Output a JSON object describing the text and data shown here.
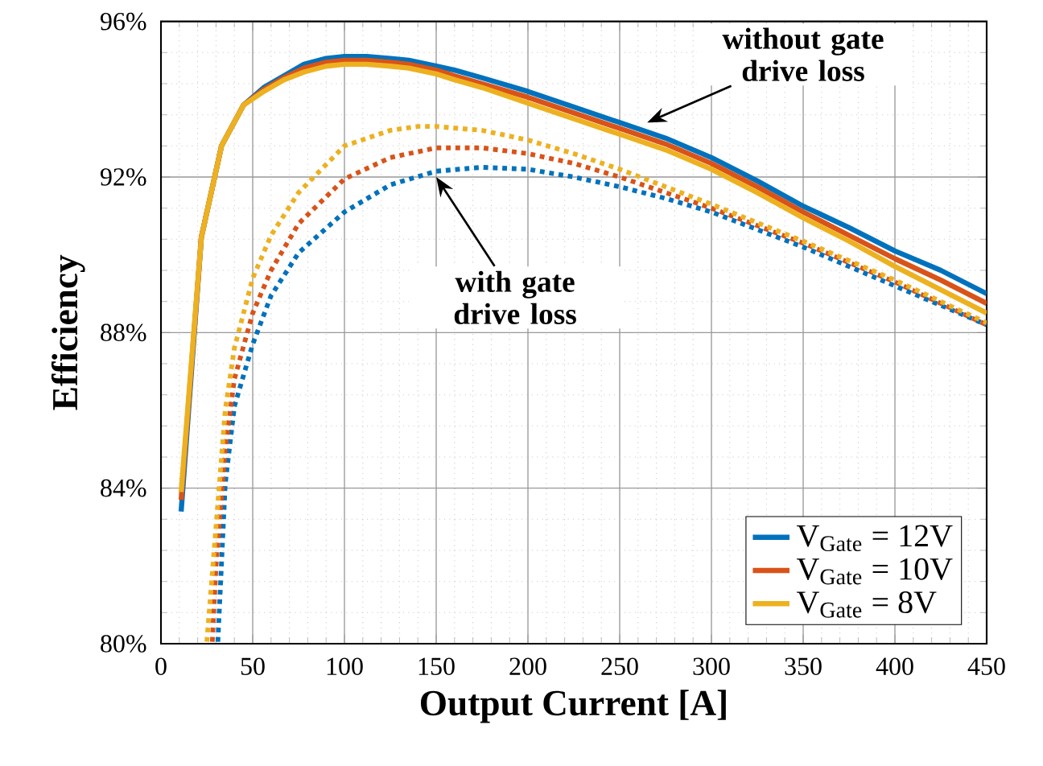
{
  "chart_data": {
    "type": "line",
    "xlabel": "Output Current [A]",
    "ylabel": "Efficiency",
    "xlim": [
      0,
      450
    ],
    "xticks": [
      0,
      50,
      100,
      150,
      200,
      250,
      300,
      350,
      400,
      450
    ],
    "ylim": [
      80,
      96
    ],
    "yticks": [
      {
        "value": 80,
        "label": "80%"
      },
      {
        "value": 84,
        "label": "84%"
      },
      {
        "value": 88,
        "label": "88%"
      },
      {
        "value": 92,
        "label": "92%"
      },
      {
        "value": 96,
        "label": "96%"
      }
    ],
    "grid": true,
    "legend": "bottom right",
    "annotations": [
      {
        "text": "without gate drive loss",
        "x": 265,
        "y": 93.4
      },
      {
        "text": "with gate drive loss",
        "x": 150,
        "y": 92.0
      }
    ],
    "series": [
      {
        "name": "V$_{Gate}$ = 12V",
        "color": "#0072bd",
        "line_style": "solid",
        "x": [
          11,
          22,
          33,
          45,
          56,
          67,
          78,
          90,
          100,
          112,
          125,
          135,
          150,
          160,
          175,
          200,
          225,
          250,
          275,
          300,
          325,
          350,
          375,
          400,
          425,
          450
        ],
        "values": [
          83.4,
          90.45,
          92.8,
          93.85,
          94.3,
          94.6,
          94.9,
          95.05,
          95.1,
          95.1,
          95.05,
          95.0,
          94.85,
          94.75,
          94.55,
          94.2,
          93.8,
          93.4,
          93.0,
          92.5,
          91.9,
          91.25,
          90.7,
          90.1,
          89.6,
          89.0
        ]
      },
      {
        "name": "V$_{Gate}$ = 10V",
        "color": "#d95319",
        "line_style": "solid",
        "x": [
          11,
          22,
          33,
          45,
          56,
          67,
          78,
          90,
          100,
          112,
          125,
          135,
          150,
          160,
          175,
          200,
          225,
          250,
          275,
          300,
          325,
          350,
          375,
          400,
          425,
          450
        ],
        "values": [
          83.7,
          90.45,
          92.8,
          93.85,
          94.25,
          94.55,
          94.8,
          94.95,
          95.0,
          95.0,
          94.95,
          94.9,
          94.75,
          94.6,
          94.4,
          94.05,
          93.65,
          93.25,
          92.85,
          92.35,
          91.75,
          91.1,
          90.5,
          89.9,
          89.35,
          88.75
        ]
      },
      {
        "name": "V$_{Gate}$ = 8V",
        "color": "#edb120",
        "line_style": "solid",
        "x": [
          11,
          22,
          33,
          45,
          56,
          67,
          78,
          90,
          100,
          112,
          125,
          135,
          150,
          160,
          175,
          200,
          225,
          250,
          275,
          300,
          325,
          350,
          375,
          400,
          425,
          450
        ],
        "values": [
          83.9,
          90.45,
          92.8,
          93.85,
          94.2,
          94.5,
          94.7,
          94.85,
          94.9,
          94.9,
          94.85,
          94.8,
          94.65,
          94.5,
          94.3,
          93.9,
          93.5,
          93.1,
          92.7,
          92.2,
          91.6,
          90.95,
          90.35,
          89.7,
          89.1,
          88.5
        ]
      },
      {
        "color": "#0072bd",
        "line_style": "dotted",
        "x": [
          31,
          35,
          40,
          50,
          60,
          75,
          100,
          125,
          150,
          175,
          200,
          225,
          250,
          275,
          300,
          350,
          400,
          450
        ],
        "values": [
          80.05,
          84.1,
          86.1,
          87.7,
          88.95,
          90.05,
          91.1,
          91.8,
          92.15,
          92.25,
          92.2,
          92.0,
          91.75,
          91.45,
          91.1,
          90.2,
          89.2,
          88.2
        ]
      },
      {
        "color": "#d95319",
        "line_style": "dotted",
        "x": [
          28,
          30,
          35,
          40,
          50,
          60,
          75,
          100,
          125,
          150,
          175,
          200,
          225,
          250,
          300,
          350,
          400,
          450
        ],
        "values": [
          80.05,
          82.0,
          85.0,
          86.8,
          88.5,
          89.6,
          90.8,
          91.95,
          92.5,
          92.75,
          92.75,
          92.6,
          92.35,
          92.0,
          91.2,
          90.3,
          89.3,
          88.2
        ]
      },
      {
        "color": "#edb120",
        "line_style": "dotted",
        "x": [
          25,
          30,
          35,
          40,
          50,
          60,
          75,
          100,
          125,
          140,
          150,
          175,
          200,
          225,
          250,
          300,
          350,
          400,
          450
        ],
        "values": [
          80.05,
          83.0,
          86.0,
          87.6,
          89.4,
          90.5,
          91.6,
          92.8,
          93.2,
          93.3,
          93.3,
          93.2,
          92.95,
          92.6,
          92.2,
          91.3,
          90.35,
          89.35,
          88.25
        ]
      }
    ]
  }
}
